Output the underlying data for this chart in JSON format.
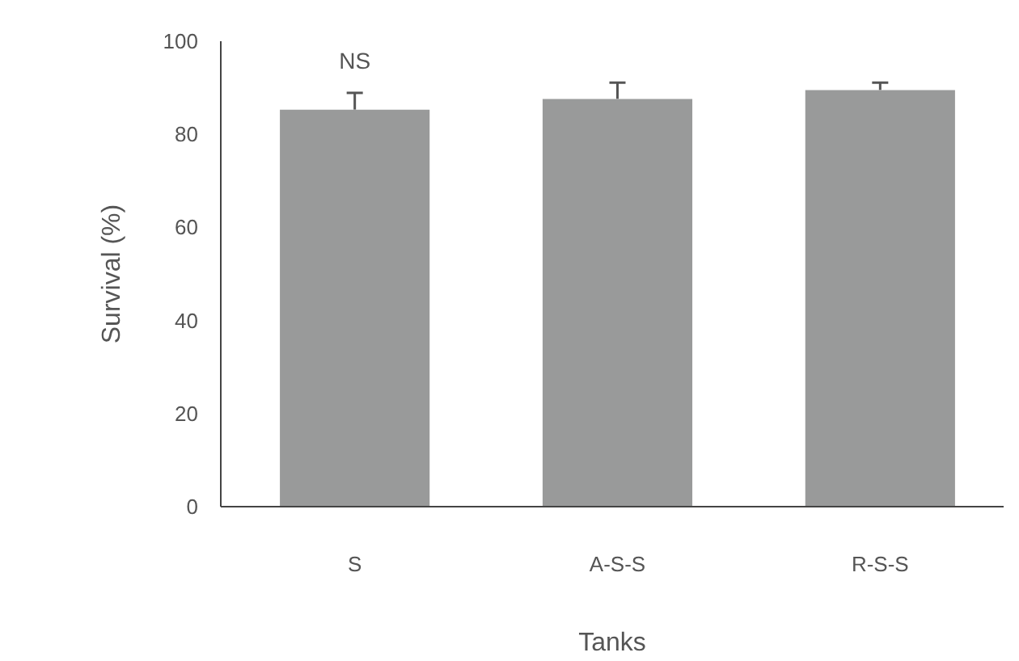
{
  "chart_data": {
    "type": "bar",
    "xlabel": "Tanks",
    "ylabel": "Survival (%)",
    "categories": [
      "S",
      "A-S-S",
      "R-S-S"
    ],
    "values": [
      85.3,
      87.6,
      89.5
    ],
    "errors": [
      3.6,
      3.5,
      1.6
    ],
    "color": "#999a9a",
    "ylim": [
      0,
      100
    ],
    "yticks": [
      0,
      20,
      40,
      60,
      80,
      100
    ],
    "grid": false,
    "annotations": [
      "NS"
    ]
  }
}
